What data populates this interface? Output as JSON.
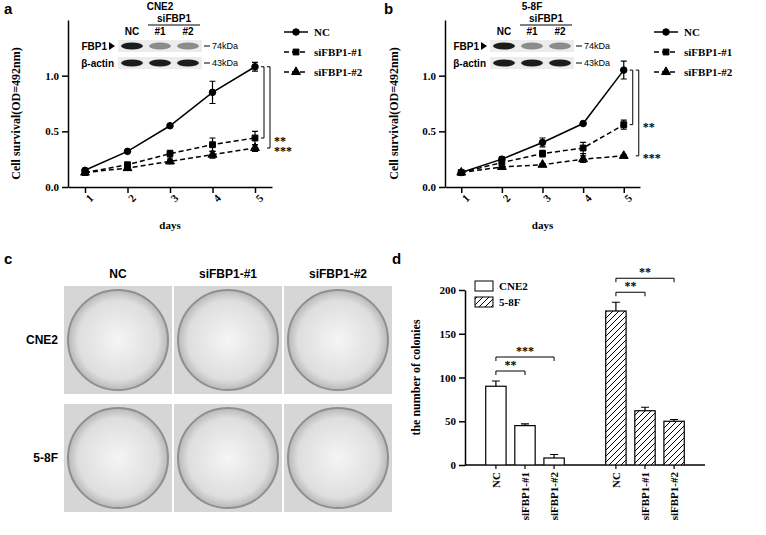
{
  "chart_data": [
    {
      "label": "a",
      "type": "line",
      "x": [
        1,
        2,
        3,
        4,
        5
      ],
      "xlim": [
        0.6,
        5.4
      ],
      "xticks": [
        1,
        2,
        3,
        4,
        5
      ],
      "ylim": [
        0,
        1.5
      ],
      "yticks": [
        {
          "value": 0,
          "label": "0.0"
        },
        0.5,
        {
          "value": 1,
          "label": "1.0"
        }
      ],
      "x_label": "days",
      "y_label": "Cell survival(OD=492nm)",
      "legend": "right",
      "series": [
        {
          "name": "NC",
          "color": "#000000",
          "marker": "circle",
          "line_style": "solid",
          "values": [
            0.15,
            0.32,
            0.55,
            0.85,
            1.08
          ],
          "errors": [
            0.01,
            0.01,
            0.01,
            0.1,
            0.04
          ]
        },
        {
          "name": "siFBP1-#1",
          "color": "#000000",
          "marker": "square",
          "line_style": "dashed",
          "values": [
            0.13,
            0.2,
            0.3,
            0.38,
            0.44
          ],
          "errors": [
            0.01,
            0.02,
            0.03,
            0.06,
            0.06
          ]
        },
        {
          "name": "siFBP1-#2",
          "color": "#000000",
          "marker": "triangle",
          "line_style": "dashed",
          "values": [
            0.13,
            0.17,
            0.23,
            0.29,
            0.35
          ],
          "errors": [
            0.01,
            0.02,
            0.02,
            0.03,
            0.03
          ]
        }
      ],
      "significance": [
        {
          "text": "**",
          "compare": [
            "NC",
            "siFBP1-#1"
          ]
        },
        {
          "text": "***",
          "compare": [
            "NC",
            "siFBP1-#2"
          ]
        }
      ],
      "inset": {
        "title": "CNE2",
        "group": "siFBP1",
        "lanes": [
          "NC",
          "#1",
          "#2"
        ],
        "rows": [
          {
            "name": "FBP1",
            "size": "74kDa"
          },
          {
            "name": "β-actin",
            "size": "43kDa"
          }
        ]
      }
    },
    {
      "label": "b",
      "type": "line",
      "x": [
        1,
        2,
        3,
        4,
        5
      ],
      "xlim": [
        0.6,
        5.4
      ],
      "xticks": [
        1,
        2,
        3,
        4,
        5
      ],
      "ylim": [
        0,
        1.5
      ],
      "yticks": [
        {
          "value": 0,
          "label": "0.0"
        },
        0.5,
        {
          "value": 1,
          "label": "1.0"
        }
      ],
      "x_label": "days",
      "y_label": "Cell survival(OD=492nm)",
      "legend": "right",
      "series": [
        {
          "name": "NC",
          "color": "#000000",
          "marker": "circle",
          "line_style": "solid",
          "values": [
            0.13,
            0.25,
            0.4,
            0.57,
            1.05
          ],
          "errors": [
            0.01,
            0.02,
            0.04,
            0.01,
            0.08
          ]
        },
        {
          "name": "siFBP1-#1",
          "color": "#000000",
          "marker": "square",
          "line_style": "dashed",
          "values": [
            0.13,
            0.22,
            0.3,
            0.35,
            0.56
          ],
          "errors": [
            0.01,
            0.01,
            0.03,
            0.05,
            0.04
          ]
        },
        {
          "name": "siFBP1-#2",
          "color": "#000000",
          "marker": "triangle",
          "line_style": "dashed",
          "values": [
            0.13,
            0.18,
            0.2,
            0.25,
            0.28
          ],
          "errors": [
            0.01,
            0.01,
            0.01,
            0.03,
            0.01
          ]
        }
      ],
      "significance": [
        {
          "text": "**",
          "compare": [
            "NC",
            "siFBP1-#1"
          ]
        },
        {
          "text": "***",
          "compare": [
            "NC",
            "siFBP1-#2"
          ]
        }
      ],
      "inset": {
        "title": "5-8F",
        "group": "siFBP1",
        "lanes": [
          "NC",
          "#1",
          "#2"
        ],
        "rows": [
          {
            "name": "FBP1",
            "size": "74kDa"
          },
          {
            "name": "β-actin",
            "size": "43kDa"
          }
        ]
      }
    },
    {
      "label": "c",
      "type": "image",
      "columns": [
        "NC",
        "siFBP1-#1",
        "siFBP1-#2"
      ],
      "rows": [
        "CNE2",
        "5-8F"
      ]
    },
    {
      "label": "d",
      "type": "bar",
      "categories": [
        "NC",
        "siFBP1-#1",
        "siFBP1-#2"
      ],
      "ylim": [
        0,
        200
      ],
      "yticks": [
        0,
        50,
        100,
        150,
        200
      ],
      "y_label": "the number of colonies",
      "legend": "top-left",
      "series": [
        {
          "name": "CNE2",
          "color": "#ffffff",
          "values": [
            90,
            45,
            8
          ],
          "errors": [
            6,
            2,
            4
          ]
        },
        {
          "name": "5-8F",
          "color": "#ffffff",
          "values": [
            176,
            62,
            50
          ],
          "errors": [
            10,
            4,
            2
          ]
        }
      ],
      "significance": [
        {
          "series": "CNE2",
          "text": "**",
          "compare": [
            "NC",
            "siFBP1-#1"
          ]
        },
        {
          "series": "CNE2",
          "text": "***",
          "compare": [
            "NC",
            "siFBP1-#2"
          ]
        },
        {
          "series": "5-8F",
          "text": "**",
          "compare": [
            "NC",
            "siFBP1-#1"
          ]
        },
        {
          "series": "5-8F",
          "text": "**",
          "compare": [
            "NC",
            "siFBP1-#2"
          ]
        }
      ]
    }
  ]
}
